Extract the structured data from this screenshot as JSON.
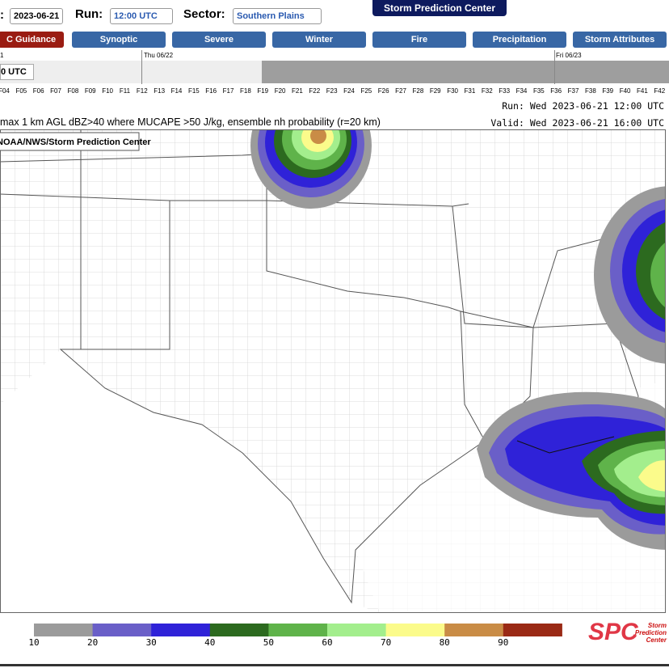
{
  "header": {
    "date_label": ":",
    "date": "2023-06-21",
    "run_label": "Run:",
    "run": "12:00 UTC",
    "sector_label": "Sector:",
    "sector": "Southern Plains",
    "brand_button": "Storm Prediction Center"
  },
  "tabs": [
    "C Guidance",
    "Synoptic",
    "Severe",
    "Winter",
    "Fire",
    "Precipitation",
    "Storm Attributes"
  ],
  "timeline": {
    "day_labels": [
      "1",
      "Thu 06/22",
      "Fri 06/23"
    ],
    "current": "0 UTC",
    "hours": [
      "F04",
      "F05",
      "F06",
      "F07",
      "F08",
      "F09",
      "F10",
      "F11",
      "F12",
      "F13",
      "F14",
      "F15",
      "F16",
      "F17",
      "F18",
      "F19",
      "F20",
      "F21",
      "F22",
      "F23",
      "F24",
      "F25",
      "F26",
      "F27",
      "F28",
      "F29",
      "F30",
      "F31",
      "F32",
      "F33",
      "F34",
      "F35",
      "F36",
      "F37",
      "F38",
      "F39",
      "F40",
      "F41",
      "F42"
    ]
  },
  "map": {
    "title": "max 1 km AGL dBZ>40 where MUCAPE >50 J/kg, ensemble nh probability (r=20 km)",
    "run": "Run: Wed 2023-06-21 12:00 UTC",
    "valid": "Valid: Wed 2023-06-21 16:00 UTC",
    "credit": "NOAA/NWS/Storm Prediction Center"
  },
  "legend": {
    "ticks": [
      10,
      20,
      30,
      40,
      50,
      60,
      70,
      80,
      90
    ],
    "colors": [
      "#9b9b9b",
      "#6a5fc8",
      "#2f22d8",
      "#2c6a1f",
      "#5fb34a",
      "#a3ee8d",
      "#fbfb8b",
      "#c98c46",
      "#9a2a15"
    ]
  },
  "logo": {
    "letters": "SPC",
    "text": "Storm Prediction Center"
  }
}
